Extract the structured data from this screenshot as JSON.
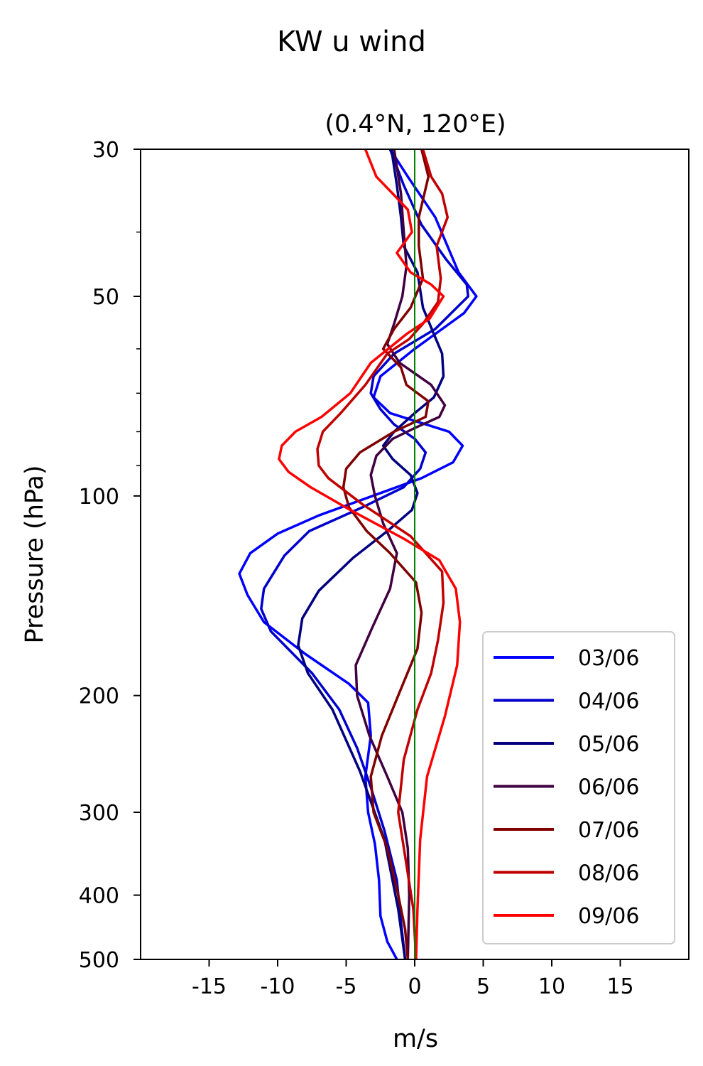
{
  "chart_data": {
    "type": "line",
    "suptitle": "KW u wind",
    "title": "(0.4°N, 120°E)",
    "xlabel": "m/s",
    "ylabel": "Pressure (hPa)",
    "xlim": [
      -20,
      20
    ],
    "ylim": [
      500,
      30
    ],
    "yscale": "log",
    "xticks": [
      -15,
      -10,
      -5,
      0,
      5,
      10,
      15
    ],
    "xtick_labels": [
      "-15",
      "-10",
      "-5",
      "0",
      "5",
      "10",
      "15"
    ],
    "yticks": [
      30,
      50,
      100,
      200,
      300,
      400,
      500
    ],
    "ytick_labels": [
      "30",
      "50",
      "100",
      "200",
      "300",
      "400",
      "500"
    ],
    "grid": false,
    "reference_line": {
      "x": 0,
      "color": "#008000"
    },
    "legend_position": "lower-right",
    "series": [
      {
        "name": "03/06",
        "color": "#0000ff",
        "points": [
          [
            -1.8,
            30
          ],
          [
            -0.5,
            33
          ],
          [
            1.5,
            38
          ],
          [
            3.2,
            46
          ],
          [
            4.5,
            50
          ],
          [
            3.6,
            53
          ],
          [
            0,
            60
          ],
          [
            -2.5,
            66
          ],
          [
            -3,
            71
          ],
          [
            -1.8,
            75
          ],
          [
            2.5,
            80
          ],
          [
            3.5,
            84
          ],
          [
            2.8,
            89
          ],
          [
            0.5,
            94
          ],
          [
            -2.5,
            99
          ],
          [
            -7,
            107
          ],
          [
            -10,
            114
          ],
          [
            -12,
            122
          ],
          [
            -12.8,
            131
          ],
          [
            -12.2,
            141
          ],
          [
            -11,
            155
          ],
          [
            -8,
            173
          ],
          [
            -4.8,
            192
          ],
          [
            -3.4,
            205
          ],
          [
            -3.2,
            230
          ],
          [
            -3.6,
            265
          ],
          [
            -3.4,
            300
          ],
          [
            -2.9,
            335
          ],
          [
            -2.6,
            380
          ],
          [
            -2.5,
            430
          ],
          [
            -2.0,
            470
          ],
          [
            -1.3,
            500
          ]
        ]
      },
      {
        "name": "04/06",
        "color": "#0000cc",
        "points": [
          [
            -1.8,
            30
          ],
          [
            -0.8,
            34
          ],
          [
            0.5,
            39
          ],
          [
            2.3,
            44
          ],
          [
            3.8,
            48
          ],
          [
            3.9,
            50
          ],
          [
            1.5,
            56
          ],
          [
            -1.5,
            61
          ],
          [
            -3,
            66
          ],
          [
            -3.2,
            70
          ],
          [
            -2.5,
            74
          ],
          [
            -1.5,
            78
          ],
          [
            0,
            82
          ],
          [
            0.8,
            86
          ],
          [
            0.4,
            91
          ],
          [
            -0.8,
            97
          ],
          [
            -3.8,
            104
          ],
          [
            -7.7,
            113
          ],
          [
            -9.5,
            123
          ],
          [
            -11,
            138
          ],
          [
            -11.2,
            148
          ],
          [
            -10.5,
            160
          ],
          [
            -7.5,
            185
          ],
          [
            -5.5,
            210
          ],
          [
            -4.2,
            240
          ],
          [
            -3.2,
            275
          ],
          [
            -2.2,
            320
          ],
          [
            -1.3,
            380
          ],
          [
            -1.0,
            440
          ],
          [
            -0.7,
            500
          ]
        ]
      },
      {
        "name": "05/06",
        "color": "#000080",
        "points": [
          [
            -1.7,
            30
          ],
          [
            -1.3,
            34
          ],
          [
            -1.0,
            38
          ],
          [
            -0.8,
            42
          ],
          [
            0.2,
            46
          ],
          [
            0.6,
            52
          ],
          [
            1.4,
            57
          ],
          [
            2.0,
            61
          ],
          [
            2.1,
            66
          ],
          [
            1.4,
            71
          ],
          [
            0,
            75
          ],
          [
            -1.5,
            80
          ],
          [
            -2.3,
            84
          ],
          [
            -1.6,
            88
          ],
          [
            -0.3,
            93
          ],
          [
            0.2,
            99
          ],
          [
            -0.2,
            105
          ],
          [
            -2,
            113
          ],
          [
            -4.5,
            124
          ],
          [
            -7,
            139
          ],
          [
            -8.2,
            153
          ],
          [
            -8.5,
            168
          ],
          [
            -7.8,
            185
          ],
          [
            -6,
            210
          ],
          [
            -4,
            260
          ],
          [
            -2.2,
            330
          ],
          [
            -1.2,
            420
          ],
          [
            -0.7,
            500
          ]
        ]
      },
      {
        "name": "06/06",
        "color": "#400040",
        "points": [
          [
            -1.5,
            30
          ],
          [
            -1.0,
            35
          ],
          [
            -0.8,
            40
          ],
          [
            -0.6,
            45
          ],
          [
            -0.9,
            50
          ],
          [
            -1.5,
            55
          ],
          [
            -2,
            59
          ],
          [
            -1.1,
            63
          ],
          [
            1.2,
            68
          ],
          [
            2.2,
            73
          ],
          [
            1.8,
            76
          ],
          [
            0,
            79
          ],
          [
            -1.6,
            82
          ],
          [
            -2.8,
            87
          ],
          [
            -3.2,
            93
          ],
          [
            -2.9,
            100
          ],
          [
            -2.3,
            110
          ],
          [
            -1.3,
            122
          ],
          [
            -1.8,
            138
          ],
          [
            -3.1,
            158
          ],
          [
            -4.3,
            180
          ],
          [
            -4.2,
            200
          ],
          [
            -3.3,
            230
          ],
          [
            -2.0,
            265
          ],
          [
            -0.9,
            300
          ],
          [
            -0.5,
            340
          ],
          [
            -0.4,
            400
          ],
          [
            -0.5,
            500
          ]
        ]
      },
      {
        "name": "07/06",
        "color": "#800000",
        "points": [
          [
            0.5,
            30
          ],
          [
            1.0,
            33
          ],
          [
            0.3,
            38
          ],
          [
            0.3,
            42
          ],
          [
            0.6,
            47
          ],
          [
            -0.3,
            52
          ],
          [
            -1.5,
            56
          ],
          [
            -2.3,
            60
          ],
          [
            -1.0,
            64
          ],
          [
            -0.6,
            68
          ],
          [
            1.0,
            72
          ],
          [
            0.8,
            76
          ],
          [
            -1.5,
            80
          ],
          [
            -4,
            86
          ],
          [
            -5,
            91
          ],
          [
            -5.2,
            97
          ],
          [
            -4.8,
            104
          ],
          [
            -3.5,
            113
          ],
          [
            -1.8,
            122
          ],
          [
            0.1,
            135
          ],
          [
            0.5,
            150
          ],
          [
            0.2,
            170
          ],
          [
            -1.2,
            200
          ],
          [
            -2.4,
            230
          ],
          [
            -3.2,
            265
          ],
          [
            -3.0,
            300
          ],
          [
            -2.0,
            340
          ],
          [
            -1.2,
            400
          ],
          [
            -0.7,
            450
          ],
          [
            -0.5,
            500
          ]
        ]
      },
      {
        "name": "08/06",
        "color": "#c00000",
        "points": [
          [
            0.6,
            30
          ],
          [
            1.2,
            33
          ],
          [
            2.0,
            35
          ],
          [
            2.4,
            38
          ],
          [
            1.6,
            42
          ],
          [
            1.9,
            47
          ],
          [
            1.7,
            51
          ],
          [
            0.6,
            55
          ],
          [
            -0.4,
            58
          ],
          [
            -2,
            61
          ],
          [
            -3.6,
            68
          ],
          [
            -5.4,
            75
          ],
          [
            -6.7,
            80
          ],
          [
            -7.1,
            85
          ],
          [
            -7.0,
            90
          ],
          [
            -6.3,
            94
          ],
          [
            -3.8,
            103
          ],
          [
            -0.3,
            115
          ],
          [
            2.0,
            130
          ],
          [
            2.1,
            145
          ],
          [
            1.7,
            165
          ],
          [
            1.2,
            185
          ],
          [
            0.2,
            210
          ],
          [
            -0.8,
            250
          ],
          [
            -1.2,
            300
          ],
          [
            -0.6,
            360
          ],
          [
            -0.1,
            420
          ],
          [
            0.1,
            500
          ]
        ]
      },
      {
        "name": "09/06",
        "color": "#ff0000",
        "points": [
          [
            -3.6,
            30
          ],
          [
            -2.8,
            33
          ],
          [
            -1.6,
            35
          ],
          [
            -0.5,
            37
          ],
          [
            -0.2,
            40
          ],
          [
            -1.3,
            43
          ],
          [
            -0.3,
            46
          ],
          [
            1.2,
            48
          ],
          [
            2.1,
            50
          ],
          [
            1.1,
            54
          ],
          [
            -0.6,
            57
          ],
          [
            -3.2,
            63
          ],
          [
            -4.7,
            70
          ],
          [
            -6.8,
            76
          ],
          [
            -8.7,
            80
          ],
          [
            -9.7,
            84
          ],
          [
            -9.9,
            88
          ],
          [
            -9.2,
            92
          ],
          [
            -7.6,
            97
          ],
          [
            -4.7,
            105
          ],
          [
            -0.8,
            116
          ],
          [
            1.8,
            125
          ],
          [
            3.0,
            138
          ],
          [
            3.3,
            155
          ],
          [
            3.1,
            180
          ],
          [
            2.2,
            215
          ],
          [
            0.9,
            265
          ],
          [
            0.4,
            330
          ],
          [
            0.2,
            420
          ],
          [
            0.1,
            500
          ]
        ]
      }
    ]
  }
}
